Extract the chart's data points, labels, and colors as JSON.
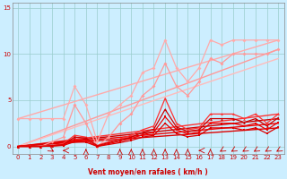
{
  "xlabel": "Vent moyen/en rafales ( km/h )",
  "xlim": [
    -0.5,
    23.5
  ],
  "ylim": [
    -0.8,
    15.5
  ],
  "yticks": [
    0,
    5,
    10,
    15
  ],
  "xticks": [
    0,
    1,
    2,
    3,
    4,
    5,
    6,
    7,
    8,
    9,
    10,
    11,
    12,
    13,
    14,
    15,
    16,
    17,
    18,
    19,
    20,
    21,
    22,
    23
  ],
  "bg_color": "#cceeff",
  "grid_color": "#99cccc",
  "series": [
    {
      "x": [
        0,
        1,
        2,
        3,
        4,
        5,
        6,
        7,
        8,
        9,
        10,
        11,
        12,
        13,
        14,
        15,
        16,
        17,
        18,
        19,
        20,
        21,
        22,
        23
      ],
      "y": [
        3.0,
        3.0,
        3.0,
        3.0,
        3.0,
        6.5,
        4.5,
        0.5,
        3.5,
        4.5,
        5.5,
        8.0,
        8.5,
        11.5,
        8.5,
        7.0,
        8.5,
        11.5,
        11.0,
        11.5,
        11.5,
        11.5,
        11.5,
        11.5
      ],
      "color": "#ffaaaa",
      "lw": 0.9,
      "marker": "D",
      "ms": 2.0,
      "zorder": 3
    },
    {
      "x": [
        0,
        1,
        2,
        3,
        4,
        5,
        6,
        7,
        8,
        9,
        10,
        11,
        12,
        13,
        14,
        15,
        16,
        17,
        18,
        19,
        20,
        21,
        22,
        23
      ],
      "y": [
        0.0,
        0.0,
        0.0,
        0.5,
        1.0,
        4.5,
        2.5,
        0.0,
        1.0,
        2.5,
        3.5,
        5.5,
        6.5,
        9.0,
        6.5,
        5.5,
        7.0,
        9.5,
        9.0,
        10.0,
        10.0,
        10.0,
        10.0,
        10.5
      ],
      "color": "#ff9999",
      "lw": 0.9,
      "marker": "D",
      "ms": 2.0,
      "zorder": 3
    },
    {
      "x": [
        0,
        23
      ],
      "y": [
        3.0,
        11.5
      ],
      "color": "#ffaaaa",
      "lw": 1.0,
      "marker": null,
      "ms": 0,
      "zorder": 2
    },
    {
      "x": [
        0,
        23
      ],
      "y": [
        0.0,
        10.5
      ],
      "color": "#ff9999",
      "lw": 1.0,
      "marker": null,
      "ms": 0,
      "zorder": 2
    },
    {
      "x": [
        0,
        23
      ],
      "y": [
        0.0,
        9.5
      ],
      "color": "#ffbbbb",
      "lw": 1.0,
      "marker": null,
      "ms": 0,
      "zorder": 2
    },
    {
      "x": [
        0,
        1,
        2,
        3,
        4,
        5,
        6,
        7,
        8,
        9,
        10,
        11,
        12,
        13,
        14,
        15,
        16,
        17,
        18,
        19,
        20,
        21,
        22,
        23
      ],
      "y": [
        0.0,
        0.0,
        0.0,
        0.1,
        0.3,
        1.2,
        1.0,
        0.1,
        0.5,
        0.8,
        1.2,
        1.8,
        2.2,
        5.2,
        2.5,
        1.8,
        2.0,
        3.5,
        3.5,
        3.5,
        3.0,
        3.5,
        2.5,
        3.5
      ],
      "color": "#ff3333",
      "lw": 0.9,
      "marker": "^",
      "ms": 2.0,
      "zorder": 4
    },
    {
      "x": [
        0,
        1,
        2,
        3,
        4,
        5,
        6,
        7,
        8,
        9,
        10,
        11,
        12,
        13,
        14,
        15,
        16,
        17,
        18,
        19,
        20,
        21,
        22,
        23
      ],
      "y": [
        0.0,
        0.0,
        0.0,
        0.08,
        0.2,
        1.0,
        0.9,
        0.05,
        0.4,
        0.7,
        1.0,
        1.5,
        1.85,
        4.0,
        2.1,
        1.6,
        1.8,
        3.0,
        3.0,
        3.0,
        2.6,
        3.0,
        2.2,
        3.1
      ],
      "color": "#cc0000",
      "lw": 0.9,
      "marker": "^",
      "ms": 2.0,
      "zorder": 4
    },
    {
      "x": [
        0,
        1,
        2,
        3,
        4,
        5,
        6,
        7,
        8,
        9,
        10,
        11,
        12,
        13,
        14,
        15,
        16,
        17,
        18,
        19,
        20,
        21,
        22,
        23
      ],
      "y": [
        0.0,
        0.0,
        0.0,
        0.05,
        0.15,
        0.7,
        0.65,
        0.0,
        0.3,
        0.55,
        0.85,
        1.25,
        1.55,
        3.2,
        1.8,
        1.35,
        1.55,
        2.5,
        2.5,
        2.5,
        2.2,
        2.5,
        1.8,
        2.6
      ],
      "color": "#ee0000",
      "lw": 0.9,
      "marker": "s",
      "ms": 1.8,
      "zorder": 4
    },
    {
      "x": [
        0,
        1,
        2,
        3,
        4,
        5,
        6,
        7,
        8,
        9,
        10,
        11,
        12,
        13,
        14,
        15,
        16,
        17,
        18,
        19,
        20,
        21,
        22,
        23
      ],
      "y": [
        0.0,
        0.0,
        0.0,
        0.03,
        0.1,
        0.5,
        0.45,
        0.0,
        0.2,
        0.4,
        0.65,
        1.0,
        1.2,
        2.5,
        1.4,
        1.05,
        1.2,
        2.0,
        2.0,
        2.0,
        1.75,
        2.0,
        1.4,
        2.1
      ],
      "color": "#dd0000",
      "lw": 0.9,
      "marker": "s",
      "ms": 1.8,
      "zorder": 4
    },
    {
      "x": [
        0,
        23
      ],
      "y": [
        0.0,
        3.5
      ],
      "color": "#ff3333",
      "lw": 1.0,
      "marker": null,
      "ms": 0,
      "zorder": 2
    },
    {
      "x": [
        0,
        23
      ],
      "y": [
        0.0,
        3.0
      ],
      "color": "#cc0000",
      "lw": 1.0,
      "marker": null,
      "ms": 0,
      "zorder": 2
    },
    {
      "x": [
        0,
        23
      ],
      "y": [
        0.0,
        2.5
      ],
      "color": "#ee0000",
      "lw": 1.0,
      "marker": null,
      "ms": 0,
      "zorder": 2
    },
    {
      "x": [
        0,
        23
      ],
      "y": [
        0.0,
        2.0
      ],
      "color": "#dd0000",
      "lw": 1.0,
      "marker": null,
      "ms": 0,
      "zorder": 2
    }
  ],
  "wind_arrows_x": [
    3,
    4,
    6,
    9,
    10,
    11,
    12,
    13,
    14,
    15,
    16,
    17,
    18,
    19,
    20,
    21,
    22,
    23
  ],
  "wind_arrows_angles": [
    45,
    270,
    180,
    180,
    180,
    180,
    180,
    180,
    180,
    180,
    270,
    180,
    315,
    315,
    315,
    315,
    315,
    315
  ],
  "arrow_color": "#cc0000",
  "xlabel_color": "#cc0000",
  "tick_color": "#cc0000"
}
